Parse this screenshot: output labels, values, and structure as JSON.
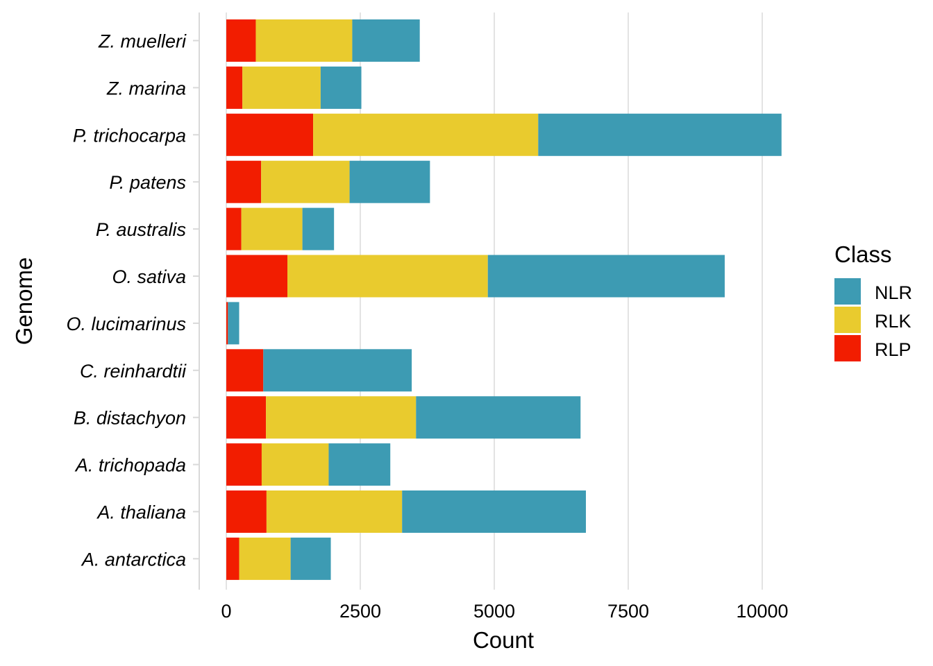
{
  "chart_data": {
    "type": "bar",
    "orientation": "horizontal",
    "stacked": true,
    "title": "",
    "xlabel": "Count",
    "ylabel": "Genome",
    "xlim": [
      0,
      10500
    ],
    "xticks": [
      0,
      2500,
      5000,
      7500,
      10000
    ],
    "grid": "vertical major",
    "legend": {
      "title": "Class",
      "position": "right"
    },
    "categories": [
      "A. antarctica",
      "A. thaliana",
      "A. trichopada",
      "B. distachyon",
      "C. reinhardtii",
      "O. lucimarinus",
      "O. sativa",
      "P. australis",
      "P. patens",
      "P. trichocarpa",
      "Z. marina",
      "Z. muelleri"
    ],
    "series": [
      {
        "name": "NLR",
        "color": "#3d9bb3",
        "values": [
          750,
          3430,
          1150,
          3070,
          2770,
          210,
          4420,
          590,
          1500,
          4540,
          760,
          1260
        ]
      },
      {
        "name": "RLK",
        "color": "#e9cb2e",
        "values": [
          960,
          2530,
          1250,
          2800,
          0,
          0,
          3740,
          1140,
          1650,
          4200,
          1460,
          1800
        ]
      },
      {
        "name": "RLP",
        "color": "#f21d00",
        "values": [
          240,
          750,
          660,
          740,
          690,
          30,
          1140,
          280,
          650,
          1620,
          300,
          550
        ]
      }
    ]
  }
}
